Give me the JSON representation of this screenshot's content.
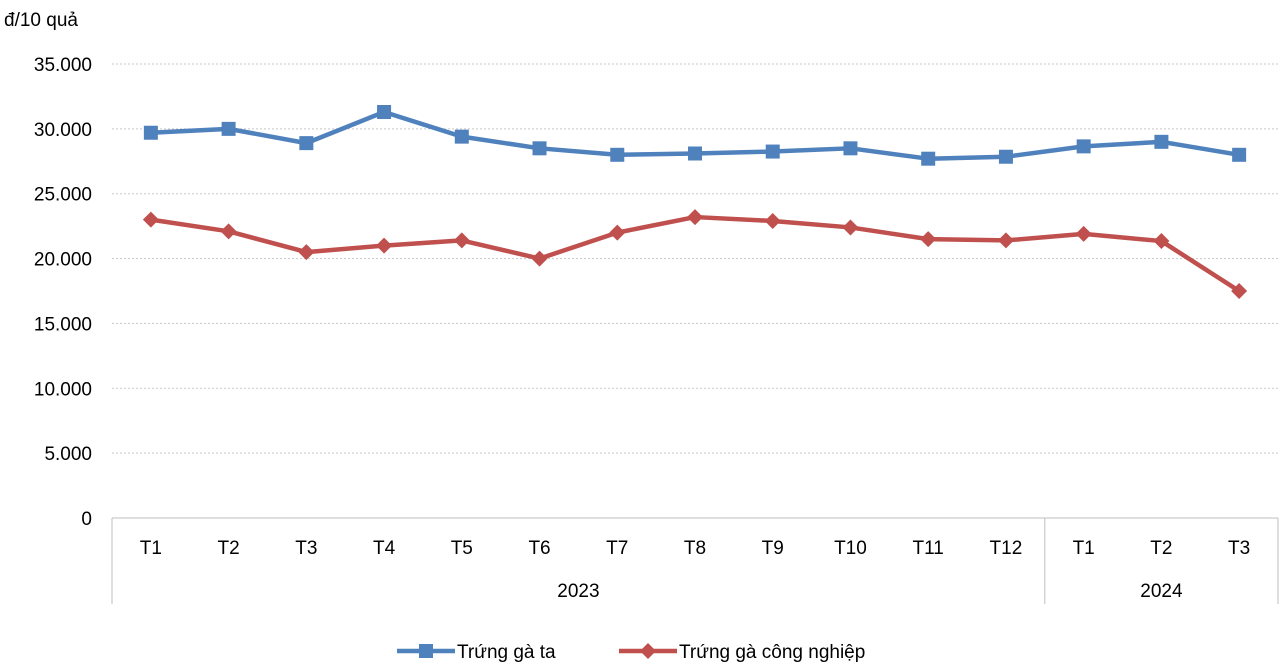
{
  "chart_data": {
    "type": "line",
    "ylabel": "đ/10 quả",
    "ylim": [
      0,
      35000
    ],
    "yticks": [
      0,
      5000,
      10000,
      15000,
      20000,
      25000,
      30000,
      35000
    ],
    "ytick_labels": [
      "0",
      "5.000",
      "10.000",
      "15.000",
      "20.000",
      "25.000",
      "30.000",
      "35.000"
    ],
    "categories": [
      "T1",
      "T2",
      "T3",
      "T4",
      "T5",
      "T6",
      "T7",
      "T8",
      "T9",
      "T10",
      "T11",
      "T12",
      "T1",
      "T2",
      "T3"
    ],
    "groups": [
      {
        "label": "2023",
        "count": 12
      },
      {
        "label": "2024",
        "count": 3
      }
    ],
    "grid": true,
    "legend_position": "bottom",
    "series": [
      {
        "name": "Trứng gà ta",
        "color": "#4f81bd",
        "marker": "square",
        "values": [
          29700,
          30000,
          28900,
          31300,
          29400,
          28500,
          28000,
          28100,
          28250,
          28500,
          27700,
          27850,
          28650,
          29000,
          28000
        ]
      },
      {
        "name": "Trứng gà công nghiệp",
        "color": "#c0504d",
        "marker": "diamond",
        "values": [
          23000,
          22100,
          20500,
          21000,
          21400,
          20000,
          22000,
          23200,
          22900,
          22400,
          21500,
          21400,
          21900,
          21350,
          17500
        ]
      }
    ]
  }
}
